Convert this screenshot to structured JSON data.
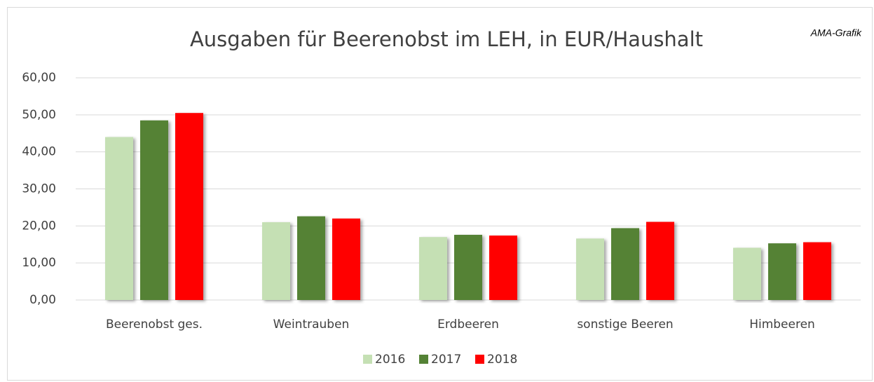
{
  "chart_data": {
    "type": "bar",
    "title": "Ausgaben für Beerenobst im LEH, in EUR/Haushalt",
    "annotation": "AMA-Grafik",
    "categories": [
      "Beerenobst ges.",
      "Weintrauben",
      "Erdbeeren",
      "sonstige Beeren",
      "Himbeeren"
    ],
    "series": [
      {
        "name": "2016",
        "color": "#c5e0b4",
        "values": [
          44.0,
          21.0,
          17.0,
          16.6,
          14.1
        ]
      },
      {
        "name": "2017",
        "color": "#548235",
        "values": [
          48.5,
          22.6,
          17.6,
          19.4,
          15.3
        ]
      },
      {
        "name": "2018",
        "color": "#ff0000",
        "values": [
          50.5,
          22.0,
          17.4,
          21.1,
          15.6
        ]
      }
    ],
    "ylim": [
      0,
      60
    ],
    "yticks": [
      {
        "value": 0,
        "label": "0,00"
      },
      {
        "value": 10,
        "label": "10,00"
      },
      {
        "value": 20,
        "label": "20,00"
      },
      {
        "value": 30,
        "label": "30,00"
      },
      {
        "value": 40,
        "label": "40,00"
      },
      {
        "value": 50,
        "label": "50,00"
      },
      {
        "value": 60,
        "label": "60,00"
      }
    ],
    "grid": true,
    "legend": "bottom"
  }
}
